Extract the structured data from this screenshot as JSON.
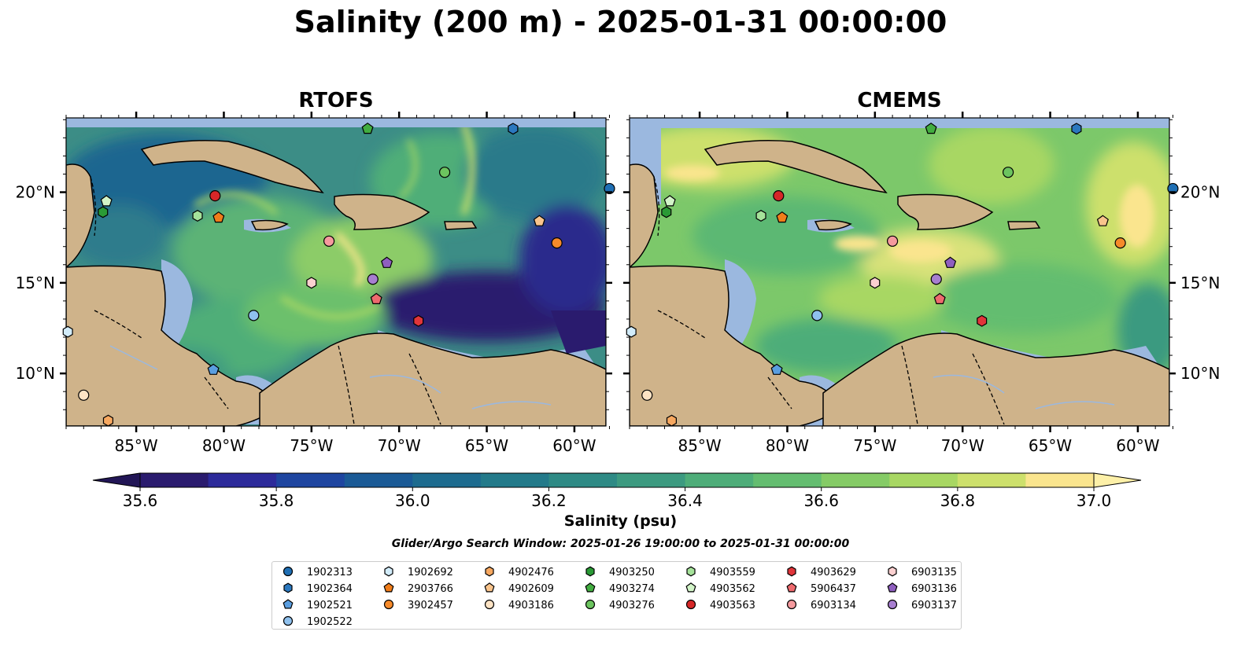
{
  "title": "Salinity (200 m) - 2025-01-31 00:00:00",
  "panels": [
    {
      "id": "rtofs",
      "title": "RTOFS"
    },
    {
      "id": "cmems",
      "title": "CMEMS"
    }
  ],
  "axes": {
    "lon_ticks": [
      "85°W",
      "80°W",
      "75°W",
      "70°W",
      "65°W",
      "60°W"
    ],
    "lat_ticks": [
      "20°N",
      "15°N",
      "10°N"
    ]
  },
  "colorbar": {
    "label": "Salinity (psu)",
    "ticks": [
      "35.6",
      "35.8",
      "36.0",
      "36.2",
      "36.4",
      "36.6",
      "36.8",
      "37.0"
    ],
    "colors": [
      "#2a1b6e",
      "#2c2a9a",
      "#1e45a0",
      "#1a5a96",
      "#1d6b8f",
      "#237a8a",
      "#2e8a85",
      "#3c9a80",
      "#4ead79",
      "#64bd70",
      "#85cb66",
      "#a8d763",
      "#cde06c",
      "#fae58e"
    ]
  },
  "search_window": "Glider/Argo Search Window: 2025-01-26 19:00:00 to 2025-01-31 00:00:00",
  "floats": [
    {
      "id": "1902313",
      "shape": "circle",
      "color": "#1f6fb4"
    },
    {
      "id": "1902364",
      "shape": "hexagon",
      "color": "#2b78bf"
    },
    {
      "id": "1902521",
      "shape": "pentagon",
      "color": "#5a9ee0"
    },
    {
      "id": "1902522",
      "shape": "circle",
      "color": "#8fc1ee"
    },
    {
      "id": "1902692",
      "shape": "hexagon",
      "color": "#d2ecfa"
    },
    {
      "id": "2903766",
      "shape": "pentagon",
      "color": "#f07d1a"
    },
    {
      "id": "3902457",
      "shape": "circle",
      "color": "#f68a2a"
    },
    {
      "id": "4902476",
      "shape": "hexagon",
      "color": "#f7a860"
    },
    {
      "id": "4902609",
      "shape": "pentagon",
      "color": "#f9c48c"
    },
    {
      "id": "4903186",
      "shape": "circle",
      "color": "#fde3c4"
    },
    {
      "id": "4903250",
      "shape": "hexagon",
      "color": "#2a9a35"
    },
    {
      "id": "4903274",
      "shape": "pentagon",
      "color": "#42ad40"
    },
    {
      "id": "4903276",
      "shape": "circle",
      "color": "#6cc45f"
    },
    {
      "id": "4903559",
      "shape": "hexagon",
      "color": "#a5e29a"
    },
    {
      "id": "4903562",
      "shape": "pentagon",
      "color": "#d2f4c8"
    },
    {
      "id": "4903563",
      "shape": "circle",
      "color": "#d62728"
    },
    {
      "id": "4903629",
      "shape": "hexagon",
      "color": "#e0353a"
    },
    {
      "id": "5906437",
      "shape": "pentagon",
      "color": "#ee6a6e"
    },
    {
      "id": "6903134",
      "shape": "circle",
      "color": "#f59a9e"
    },
    {
      "id": "6903135",
      "shape": "hexagon",
      "color": "#fbd0d0"
    },
    {
      "id": "6903136",
      "shape": "pentagon",
      "color": "#8f5fbf"
    },
    {
      "id": "6903137",
      "shape": "circle",
      "color": "#a77ed0"
    }
  ],
  "float_positions": [
    {
      "id": "1902313",
      "lon": -58.0,
      "lat": 20.2
    },
    {
      "id": "1902364",
      "lon": -63.5,
      "lat": 23.5
    },
    {
      "id": "1902521",
      "lon": -80.6,
      "lat": 10.2
    },
    {
      "id": "1902522",
      "lon": -78.3,
      "lat": 13.2
    },
    {
      "id": "1902692",
      "lon": -88.9,
      "lat": 12.3
    },
    {
      "id": "2903766",
      "lon": -80.3,
      "lat": 18.6
    },
    {
      "id": "3902457",
      "lon": -61.0,
      "lat": 17.2
    },
    {
      "id": "4902476",
      "lon": -86.6,
      "lat": 7.4
    },
    {
      "id": "4902609",
      "lon": -62.0,
      "lat": 18.4
    },
    {
      "id": "4903186",
      "lon": -88.0,
      "lat": 8.8
    },
    {
      "id": "4903250",
      "lon": -86.9,
      "lat": 18.9
    },
    {
      "id": "4903274",
      "lon": -71.8,
      "lat": 23.5
    },
    {
      "id": "4903276",
      "lon": -67.4,
      "lat": 21.1
    },
    {
      "id": "4903559",
      "lon": -81.5,
      "lat": 18.7
    },
    {
      "id": "4903562",
      "lon": -86.7,
      "lat": 19.5
    },
    {
      "id": "4903563",
      "lon": -80.5,
      "lat": 19.8
    },
    {
      "id": "4903629",
      "lon": -68.9,
      "lat": 12.9
    },
    {
      "id": "5906437",
      "lon": -71.3,
      "lat": 14.1
    },
    {
      "id": "6903134",
      "lon": -74.0,
      "lat": 17.3
    },
    {
      "id": "6903135",
      "lon": -75.0,
      "lat": 15.0
    },
    {
      "id": "6903136",
      "lon": -70.7,
      "lat": 16.1
    },
    {
      "id": "6903137",
      "lon": -71.5,
      "lat": 15.2
    }
  ],
  "map_extent": {
    "lon": [
      -89,
      -58.2
    ],
    "lat": [
      7.1,
      24.1
    ]
  }
}
